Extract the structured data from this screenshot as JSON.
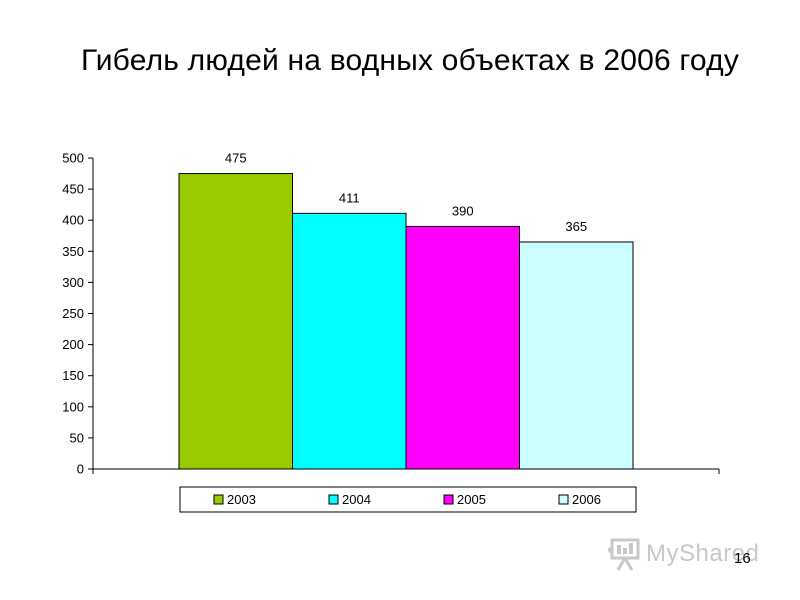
{
  "slide": {
    "title": "Гибель людей на водных объектах в 2006 году",
    "page_number": "16",
    "watermark": "MyShared"
  },
  "chart_data": {
    "type": "bar",
    "title": "Гибель людей на водных объектах в 2006 году",
    "xlabel": "",
    "ylabel": "",
    "ylim": [
      0,
      500
    ],
    "yticks": [
      0,
      50,
      100,
      150,
      200,
      250,
      300,
      350,
      400,
      450,
      500
    ],
    "grid": false,
    "legend_position": "bottom",
    "series": [
      {
        "name": "2003",
        "value": 475,
        "color": "#99cc00"
      },
      {
        "name": "2004",
        "value": 411,
        "color": "#00ffff"
      },
      {
        "name": "2005",
        "value": 390,
        "color": "#ff00ff"
      },
      {
        "name": "2006",
        "value": 365,
        "color": "#ccffff"
      }
    ]
  }
}
